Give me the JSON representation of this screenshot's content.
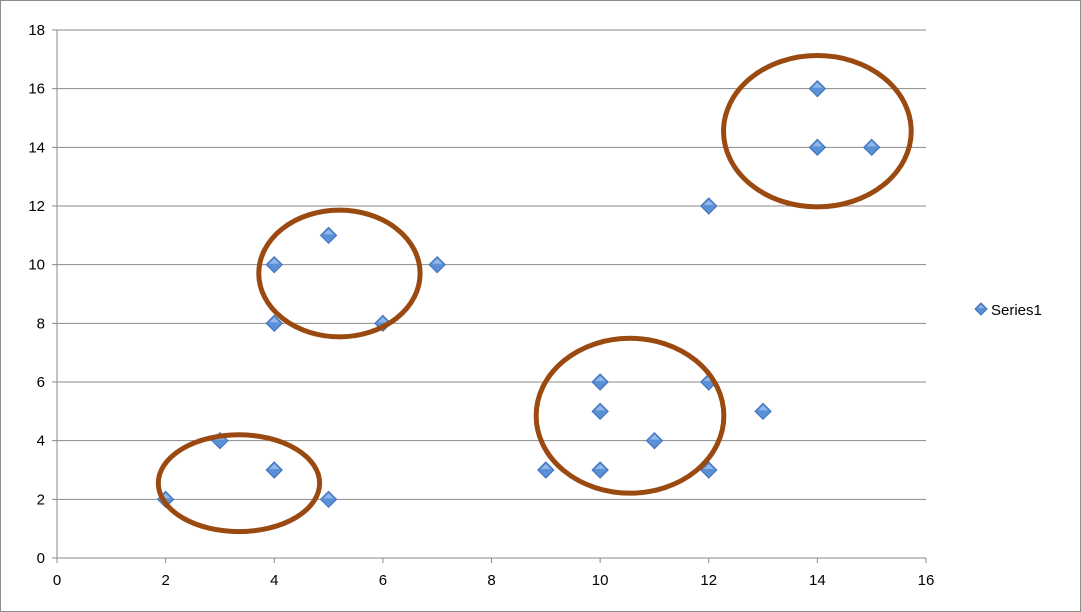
{
  "chart_data": {
    "type": "scatter",
    "title": "",
    "xlabel": "",
    "ylabel": "",
    "xlim": [
      0,
      16
    ],
    "ylim": [
      0,
      18
    ],
    "x_ticks": [
      0,
      2,
      4,
      6,
      8,
      10,
      12,
      14,
      16
    ],
    "y_ticks": [
      0,
      2,
      4,
      6,
      8,
      10,
      12,
      14,
      16,
      18
    ],
    "grid": "horizontal",
    "legend_position": "right",
    "series": [
      {
        "name": "Series1",
        "marker": "diamond",
        "color": "#5b8fd6",
        "points": [
          {
            "x": 2,
            "y": 2
          },
          {
            "x": 3,
            "y": 4
          },
          {
            "x": 4,
            "y": 3
          },
          {
            "x": 5,
            "y": 2
          },
          {
            "x": 4,
            "y": 10
          },
          {
            "x": 4,
            "y": 8
          },
          {
            "x": 5,
            "y": 11
          },
          {
            "x": 6,
            "y": 8
          },
          {
            "x": 7,
            "y": 10
          },
          {
            "x": 9,
            "y": 3
          },
          {
            "x": 10,
            "y": 6
          },
          {
            "x": 10,
            "y": 5
          },
          {
            "x": 10,
            "y": 3
          },
          {
            "x": 11,
            "y": 4
          },
          {
            "x": 12,
            "y": 6
          },
          {
            "x": 12,
            "y": 3
          },
          {
            "x": 13,
            "y": 5
          },
          {
            "x": 12,
            "y": 12
          },
          {
            "x": 14,
            "y": 16
          },
          {
            "x": 14,
            "y": 14
          },
          {
            "x": 15,
            "y": 14
          }
        ]
      }
    ],
    "annotations": {
      "type": "ellipse",
      "color": "#9a4a10",
      "clusters": [
        {
          "cx": 3.35,
          "cy": 2.55,
          "rx": 2.75,
          "ry": 2.75
        },
        {
          "cx": 5.2,
          "cy": 9.7,
          "rx": 2.75,
          "ry": 3.6
        },
        {
          "cx": 10.55,
          "cy": 4.85,
          "rx": 3.2,
          "ry": 4.4
        },
        {
          "cx": 14.0,
          "cy": 14.55,
          "rx": 3.2,
          "ry": 4.3
        }
      ]
    }
  }
}
